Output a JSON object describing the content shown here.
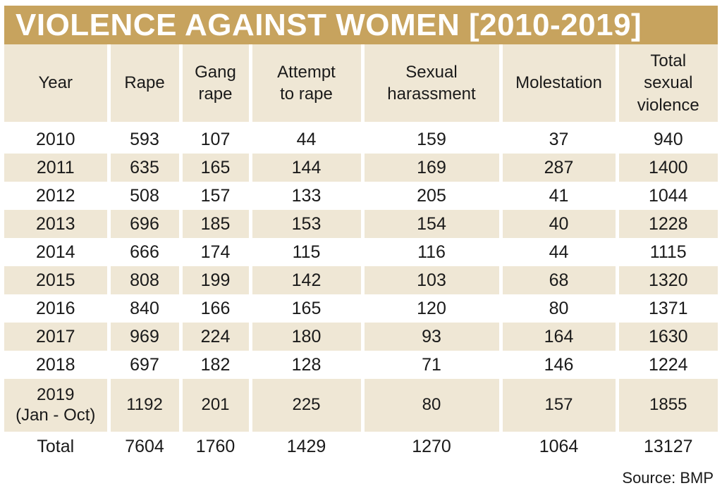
{
  "title": "VIOLENCE AGAINST WOMEN [2010-2019]",
  "source": "Source: BMP",
  "colors": {
    "title_bg": "#c7a35e",
    "title_text": "#ffffff",
    "band": "#efe7d5"
  },
  "chart_data": {
    "type": "table",
    "title": "VIOLENCE AGAINST WOMEN [2010-2019]",
    "columns": [
      [
        "Year"
      ],
      [
        "Rape"
      ],
      [
        "Gang",
        "rape"
      ],
      [
        "Attempt",
        "to rape"
      ],
      [
        "Sexual",
        "harassment"
      ],
      [
        "Molestation"
      ],
      [
        "Total",
        "sexual",
        "violence"
      ]
    ],
    "rows": [
      {
        "year": [
          "2010"
        ],
        "values": [
          "593",
          "107",
          "44",
          "159",
          "37",
          "940"
        ]
      },
      {
        "year": [
          "2011"
        ],
        "values": [
          "635",
          "165",
          "144",
          "169",
          "287",
          "1400"
        ]
      },
      {
        "year": [
          "2012"
        ],
        "values": [
          "508",
          "157",
          "133",
          "205",
          "41",
          "1044"
        ]
      },
      {
        "year": [
          "2013"
        ],
        "values": [
          "696",
          "185",
          "153",
          "154",
          "40",
          "1228"
        ]
      },
      {
        "year": [
          "2014"
        ],
        "values": [
          "666",
          "174",
          "115",
          "116",
          "44",
          "1115"
        ]
      },
      {
        "year": [
          "2015"
        ],
        "values": [
          "808",
          "199",
          "142",
          "103",
          "68",
          "1320"
        ]
      },
      {
        "year": [
          "2016"
        ],
        "values": [
          "840",
          "166",
          "165",
          "120",
          "80",
          "1371"
        ]
      },
      {
        "year": [
          "2017"
        ],
        "values": [
          "969",
          "224",
          "180",
          "93",
          "164",
          "1630"
        ]
      },
      {
        "year": [
          "2018"
        ],
        "values": [
          "697",
          "182",
          "128",
          "71",
          "146",
          "1224"
        ]
      },
      {
        "year": [
          "2019",
          "(Jan - Oct)"
        ],
        "values": [
          "1192",
          "201",
          "225",
          "80",
          "157",
          "1855"
        ]
      }
    ],
    "total": {
      "label": "Total",
      "values": [
        "7604",
        "1760",
        "1429",
        "1270",
        "1064",
        "13127"
      ]
    }
  }
}
